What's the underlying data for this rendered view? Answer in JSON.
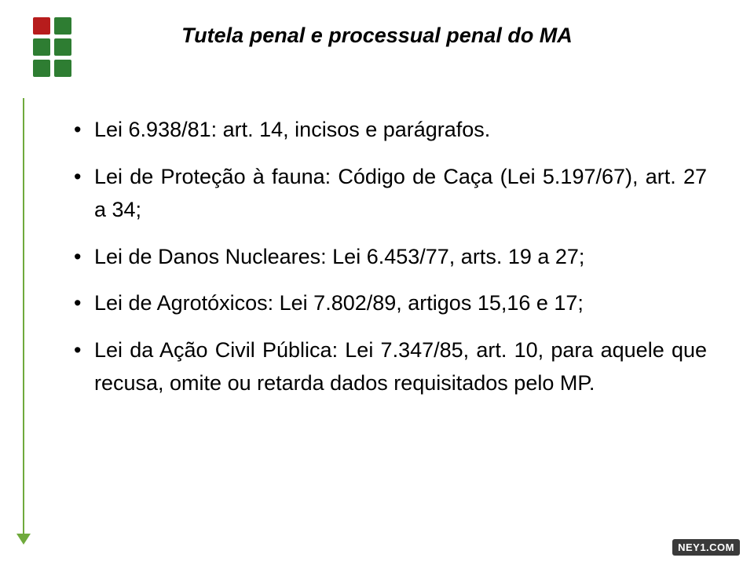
{
  "slide": {
    "title": "Tutela penal e processual penal do MA",
    "title_fontsize": 27,
    "body_fontsize": 27,
    "line_height": 1.55,
    "item_gap": 18,
    "bullets": [
      "Lei 6.938/81: art. 14, incisos e parágrafos.",
      "Lei de Proteção à fauna: Código de Caça (Lei 5.197/67), art. 27 a 34;",
      "Lei de Danos Nucleares: Lei 6.453/77, arts. 19 a 27;",
      "Lei de Agrotóxicos: Lei 7.802/89, artigos 15,16 e 17;",
      "Lei da Ação Civil Pública: Lei 7.347/85, art. 10, para aquele que recusa, omite ou retarda dados requisitados pelo MP."
    ]
  },
  "logo": {
    "squares": [
      {
        "color": "#b71c1c"
      },
      {
        "color": "#2e7d32"
      },
      {
        "color": "#2e7d32"
      },
      {
        "color": "#2e7d32"
      },
      {
        "color": "#2e7d32"
      },
      {
        "color": "#2e7d32"
      }
    ],
    "bar_color": "#2e7d32"
  },
  "decoration": {
    "rule_color": "#6faa3c"
  },
  "badge": {
    "text": "NEY1.COM",
    "fontsize": 13,
    "bg": "#3a3a3a",
    "fg": "#ffffff"
  }
}
